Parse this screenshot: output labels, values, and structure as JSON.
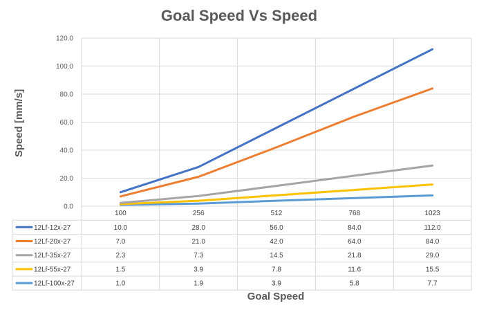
{
  "chart_data": {
    "type": "line",
    "title": "Goal Speed Vs Speed",
    "xlabel": "Goal Speed",
    "ylabel": "Speed [mm/s]",
    "categories": [
      "100",
      "256",
      "512",
      "768",
      "1023"
    ],
    "ylim": [
      0,
      120
    ],
    "yticks": [
      "0.0",
      "20.0",
      "40.0",
      "60.0",
      "80.0",
      "100.0",
      "120.0"
    ],
    "grid": true,
    "legend": "data-table",
    "series": [
      {
        "name": "12Lf-12x-27",
        "color": "#4472c4",
        "values": [
          10.0,
          28.0,
          56.0,
          84.0,
          112.0
        ],
        "labels": [
          "10.0",
          "28.0",
          "56.0",
          "84.0",
          "112.0"
        ]
      },
      {
        "name": "12Lf-20x-27",
        "color": "#ed7d31",
        "values": [
          7.0,
          21.0,
          42.0,
          64.0,
          84.0
        ],
        "labels": [
          "7.0",
          "21.0",
          "42.0",
          "64.0",
          "84.0"
        ]
      },
      {
        "name": "12Lf-35x-27",
        "color": "#a5a5a5",
        "values": [
          2.3,
          7.3,
          14.5,
          21.8,
          29.0
        ],
        "labels": [
          "2.3",
          "7.3",
          "14.5",
          "21.8",
          "29.0"
        ]
      },
      {
        "name": "12Lf-55x-27",
        "color": "#ffc000",
        "values": [
          1.5,
          3.9,
          7.8,
          11.6,
          15.5
        ],
        "labels": [
          "1.5",
          "3.9",
          "7.8",
          "11.6",
          "15.5"
        ]
      },
      {
        "name": "12Lf-100x-27",
        "color": "#5b9bd5",
        "values": [
          1.0,
          1.9,
          3.9,
          5.8,
          7.7
        ],
        "labels": [
          "1.0",
          "1.9",
          "3.9",
          "5.8",
          "7.7"
        ]
      }
    ]
  }
}
